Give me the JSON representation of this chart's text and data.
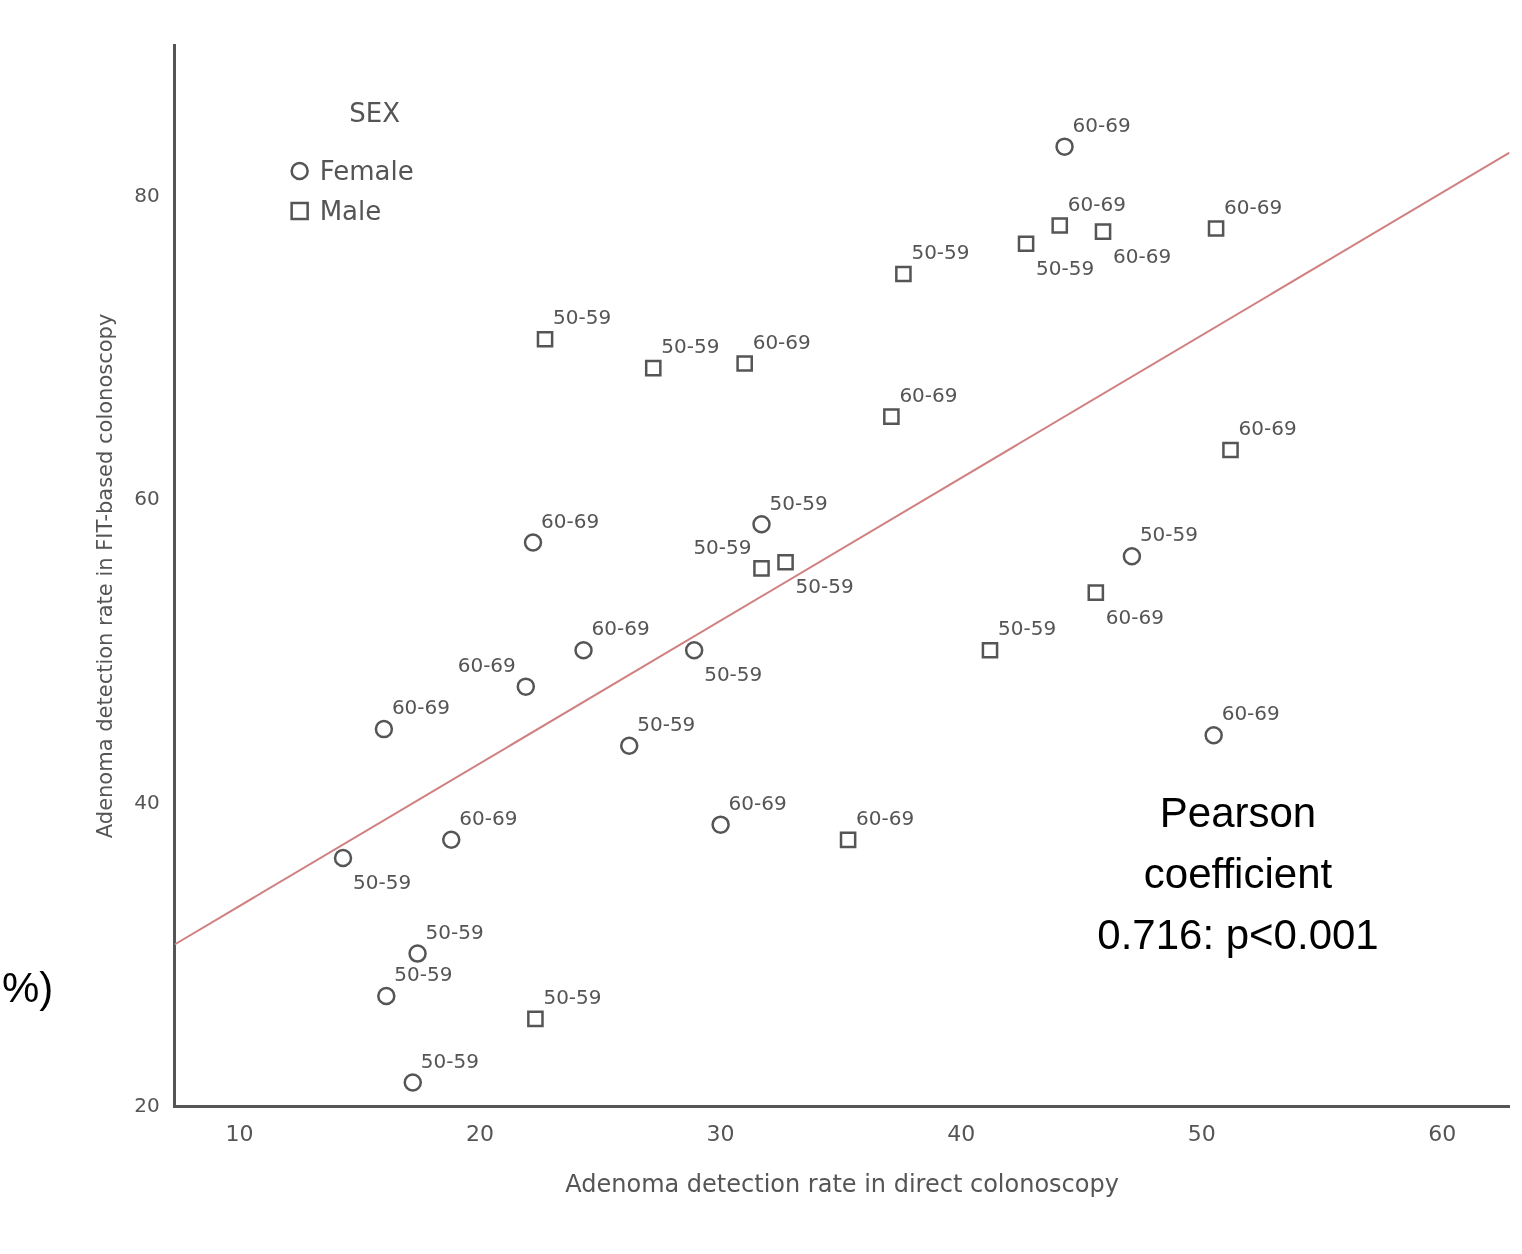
{
  "chart_data": {
    "type": "scatter",
    "xlabel": "Adenoma detection rate in direct colonoscopy",
    "ylabel": "Adenoma detection rate in FIT-based colonoscopy",
    "legend_title": "SEX",
    "xlim": [
      7.3,
      62.8
    ],
    "ylim": [
      20,
      90
    ],
    "xticks": [
      10,
      20,
      30,
      40,
      50,
      60
    ],
    "yticks": [
      20,
      40,
      60,
      80
    ],
    "grid": false,
    "legend": "top left",
    "annotations": [
      "%)",
      "Pearson coefficient 0.716: p<0.001"
    ],
    "series": [
      {
        "name": "Female",
        "marker": "circle",
        "color": "#555555",
        "x": [
          44.3,
          22.2,
          31.7,
          47.1,
          24.3,
          28.9,
          21.9,
          16.0,
          26.2,
          50.5,
          14.3,
          18.8,
          30.0,
          17.4,
          16.1,
          17.2
        ],
        "values": [
          83.3,
          57.2,
          58.4,
          56.3,
          50.1,
          50.1,
          47.7,
          44.9,
          43.8,
          44.5,
          36.4,
          37.6,
          38.6,
          30.1,
          27.3,
          21.6
        ],
        "value_labels": [
          "60-69",
          "60-69",
          "50-59",
          "50-59",
          "60-69",
          "50-59",
          "60-69",
          "60-69",
          "50-59",
          "60-69",
          "50-59",
          "60-69",
          "60-69",
          "50-59",
          "50-59",
          "50-59"
        ]
      },
      {
        "name": "Male",
        "marker": "square",
        "color": "#555555",
        "x": [
          22.7,
          27.2,
          31.0,
          37.6,
          37.1,
          42.7,
          44.1,
          45.9,
          50.6,
          51.2,
          31.7,
          32.7,
          45.6,
          41.2,
          35.3,
          22.3
        ],
        "values": [
          70.6,
          68.7,
          69.0,
          74.9,
          65.5,
          76.9,
          78.1,
          77.7,
          77.9,
          63.3,
          55.5,
          55.9,
          53.9,
          50.1,
          37.6,
          25.8
        ],
        "value_labels": [
          "50-59",
          "50-59",
          "60-69",
          "50-59",
          "60-69",
          "50-59",
          "60-69",
          "60-69",
          "60-69",
          "60-69",
          "50-59",
          "50-59",
          "60-69",
          "50-59",
          "60-69",
          "50-59"
        ]
      },
      {
        "type": "line",
        "marker": "none",
        "color": "#d08080",
        "x": [
          7.3,
          62.8
        ],
        "values": [
          30.7,
          82.9
        ]
      }
    ]
  }
}
